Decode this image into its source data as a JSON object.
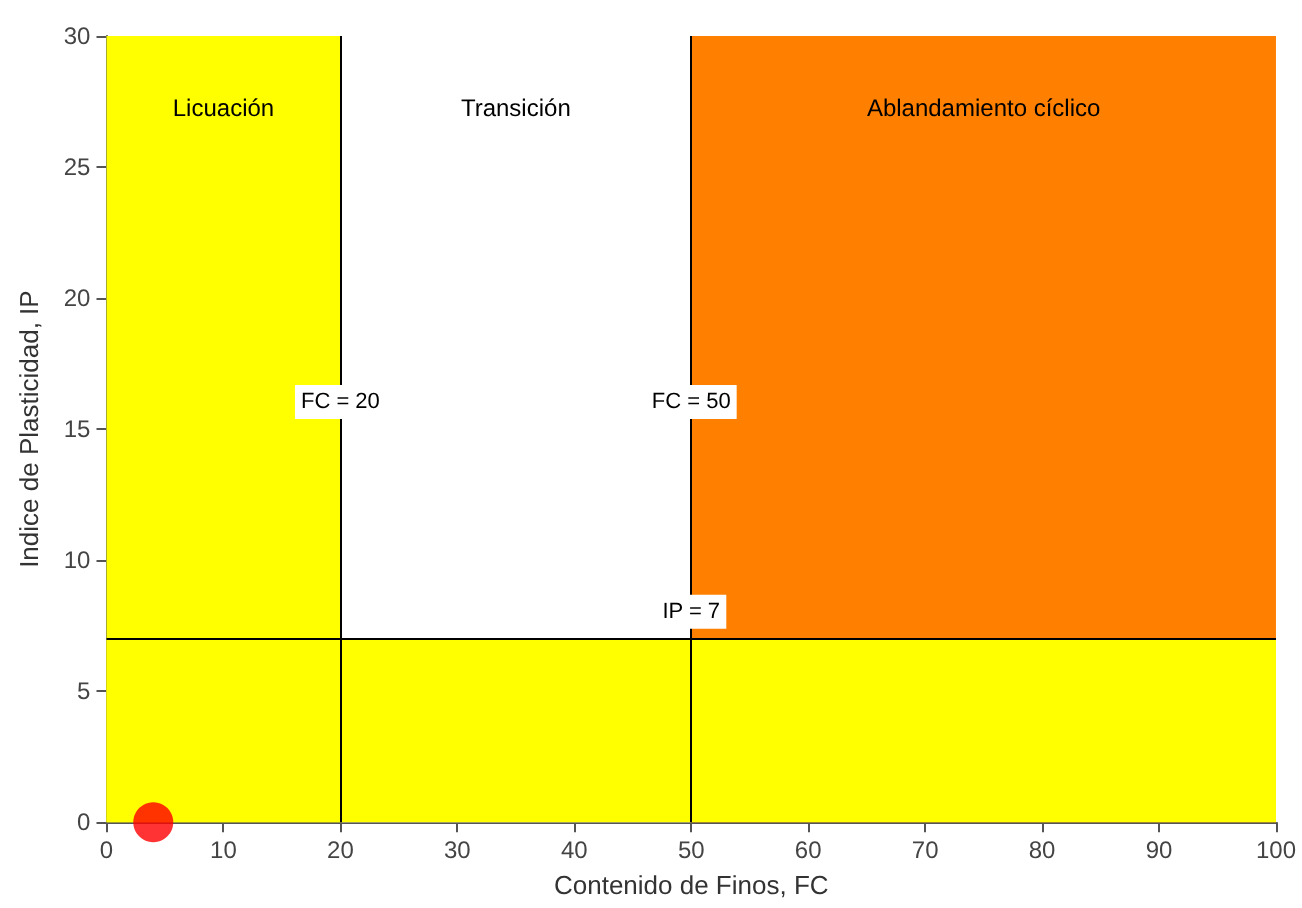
{
  "chart_data": {
    "type": "scatter",
    "xlabel": "Contenido de Finos, FC",
    "ylabel": "Indice de Plasticidad, IP",
    "x": [
      4
    ],
    "values": [
      0
    ],
    "color": "#ff0000",
    "marker": "circle",
    "xlim": [
      0,
      100
    ],
    "xticks": [
      0,
      10,
      20,
      30,
      40,
      50,
      60,
      70,
      80,
      90,
      100
    ],
    "ylim": [
      0,
      30
    ],
    "yticks": [
      0,
      5,
      10,
      15,
      20,
      25,
      30
    ],
    "grid": false,
    "bands": [
      {
        "axis": "x",
        "from": 0,
        "to": 20,
        "label": "Licuación",
        "color": "#ffff00"
      },
      {
        "axis": "x",
        "from": 20,
        "to": 50,
        "label": "Transición",
        "color": "#ffffff"
      },
      {
        "axis": "x",
        "from": 50,
        "to": 100,
        "label": "Ablandamiento cíclico",
        "color": "#ff8000"
      },
      {
        "axis": "y",
        "from": 0,
        "to": 7,
        "label": null,
        "color": "#ffff00"
      }
    ],
    "ref_lines": [
      {
        "axis": "x",
        "value": 20,
        "label": "FC = 20",
        "color": "#000000"
      },
      {
        "axis": "x",
        "value": 50,
        "label": "FC = 50",
        "color": "#000000"
      },
      {
        "axis": "y",
        "value": 7,
        "label": "IP = 7",
        "color": "#000000"
      }
    ]
  }
}
